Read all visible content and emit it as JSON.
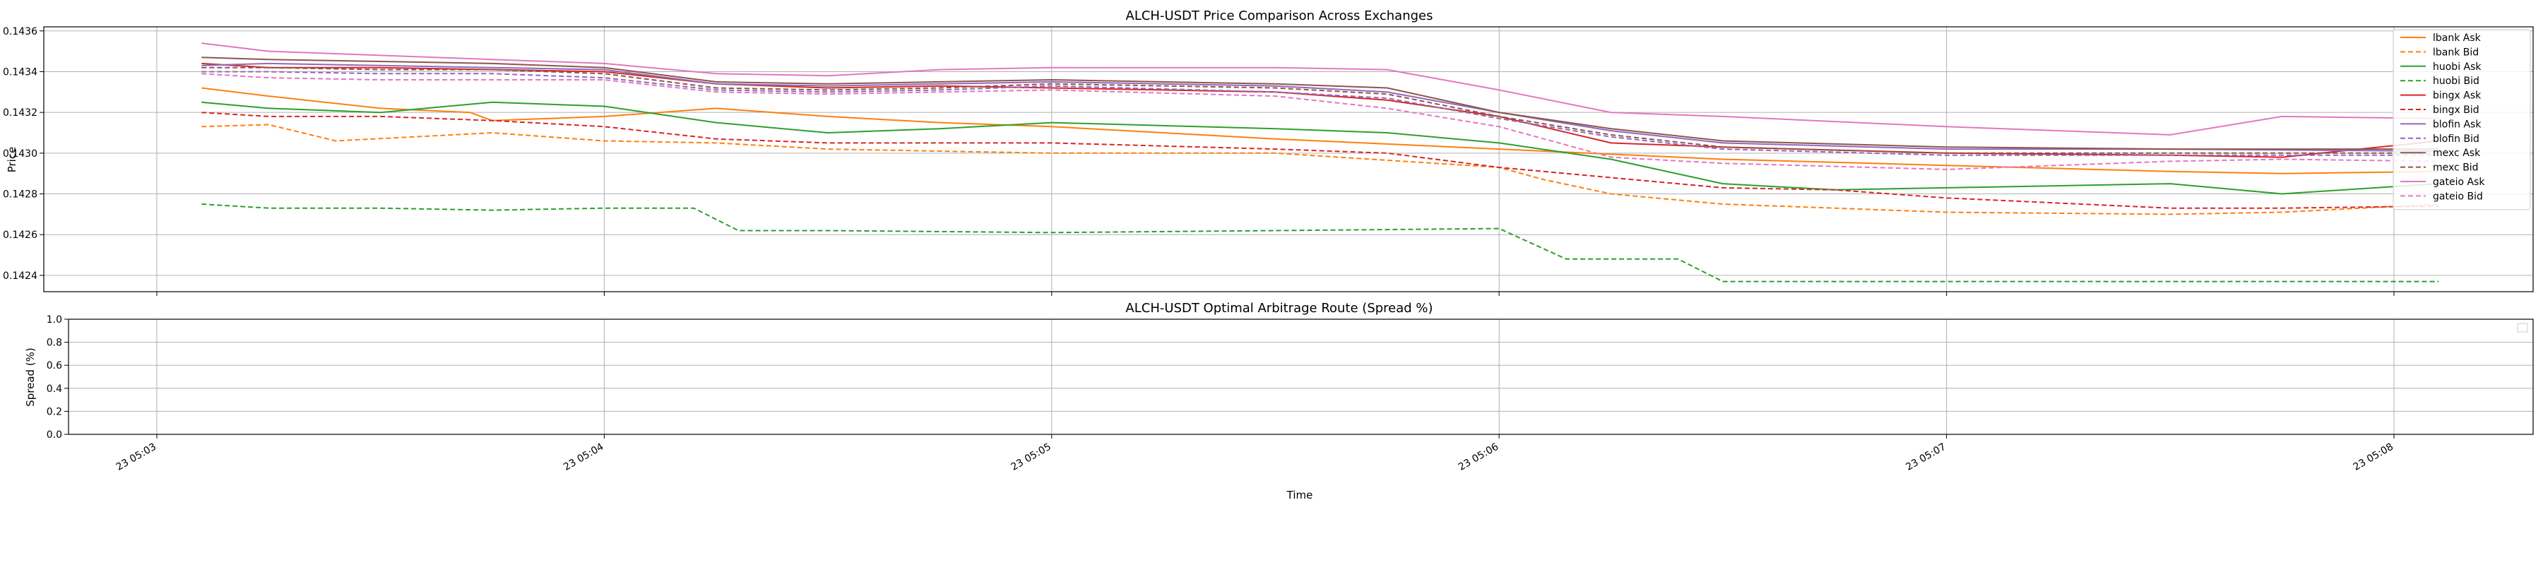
{
  "chart_data": [
    {
      "type": "line",
      "title": "ALCH-USDT Price Comparison Across Exchanges",
      "xlabel": "",
      "ylabel": "Price",
      "ylim": [
        0.14232,
        0.14362
      ],
      "y_ticks": [
        0.1424,
        0.1426,
        0.1428,
        0.143,
        0.1432,
        0.1434,
        0.1436
      ],
      "y_tick_labels": [
        "0.1424",
        "0.1426",
        "0.1428",
        "0.1430",
        "0.1432",
        "0.1434",
        "0.1436"
      ],
      "grid": true,
      "legend_position": "top-right",
      "series": [
        {
          "name": "lbank Ask",
          "color": "#ff7f0e",
          "dash": "solid",
          "points": [
            [
              0.2,
              0.14332
            ],
            [
              0.5,
              0.14328
            ],
            [
              1.0,
              0.14322
            ],
            [
              1.4,
              0.1432
            ],
            [
              1.5,
              0.14316
            ],
            [
              2.0,
              0.14318
            ],
            [
              2.5,
              0.14322
            ],
            [
              3.0,
              0.14318
            ],
            [
              3.5,
              0.14315
            ],
            [
              4.0,
              0.14313
            ],
            [
              5.0,
              0.14307
            ],
            [
              6.0,
              0.14302
            ],
            [
              7.0,
              0.14297
            ],
            [
              8.0,
              0.14294
            ],
            [
              9.0,
              0.14291
            ],
            [
              9.5,
              0.1429
            ],
            [
              10.2,
              0.14291
            ]
          ]
        },
        {
          "name": "lbank Bid",
          "color": "#ff7f0e",
          "dash": "dashed",
          "points": [
            [
              0.2,
              0.14313
            ],
            [
              0.5,
              0.14314
            ],
            [
              0.8,
              0.14306
            ],
            [
              1.5,
              0.1431
            ],
            [
              2.0,
              0.14306
            ],
            [
              2.5,
              0.14305
            ],
            [
              3.0,
              0.14302
            ],
            [
              3.5,
              0.14301
            ],
            [
              4.0,
              0.143
            ],
            [
              5.0,
              0.143
            ],
            [
              6.0,
              0.14293
            ],
            [
              6.2,
              0.14287
            ],
            [
              6.5,
              0.1428
            ],
            [
              7.0,
              0.14275
            ],
            [
              7.5,
              0.14273
            ],
            [
              8.0,
              0.14271
            ],
            [
              9.0,
              0.1427
            ],
            [
              9.5,
              0.14271
            ],
            [
              10.2,
              0.14275
            ]
          ]
        },
        {
          "name": "huobi Ask",
          "color": "#2ca02c",
          "dash": "solid",
          "points": [
            [
              0.2,
              0.14325
            ],
            [
              0.5,
              0.14322
            ],
            [
              1.0,
              0.1432
            ],
            [
              1.5,
              0.14325
            ],
            [
              2.0,
              0.14323
            ],
            [
              2.5,
              0.14315
            ],
            [
              3.0,
              0.1431
            ],
            [
              3.5,
              0.14312
            ],
            [
              4.0,
              0.14315
            ],
            [
              5.0,
              0.14312
            ],
            [
              5.5,
              0.1431
            ],
            [
              6.0,
              0.14305
            ],
            [
              6.5,
              0.14297
            ],
            [
              7.0,
              0.14285
            ],
            [
              7.5,
              0.14282
            ],
            [
              8.0,
              0.14283
            ],
            [
              9.0,
              0.14285
            ],
            [
              9.5,
              0.1428
            ],
            [
              10.2,
              0.14285
            ]
          ]
        },
        {
          "name": "huobi Bid",
          "color": "#2ca02c",
          "dash": "dashed",
          "points": [
            [
              0.2,
              0.14275
            ],
            [
              0.5,
              0.14273
            ],
            [
              1.0,
              0.14273
            ],
            [
              1.5,
              0.14272
            ],
            [
              2.0,
              0.14273
            ],
            [
              2.4,
              0.14273
            ],
            [
              2.6,
              0.14262
            ],
            [
              3.0,
              0.14262
            ],
            [
              4.0,
              0.14261
            ],
            [
              5.0,
              0.14262
            ],
            [
              6.0,
              0.14263
            ],
            [
              6.3,
              0.14248
            ],
            [
              6.8,
              0.14248
            ],
            [
              7.0,
              0.14237
            ],
            [
              8.0,
              0.14237
            ],
            [
              9.0,
              0.14237
            ],
            [
              10.2,
              0.14237
            ]
          ]
        },
        {
          "name": "bingx Ask",
          "color": "#d62728",
          "dash": "solid",
          "points": [
            [
              0.2,
              0.14344
            ],
            [
              0.5,
              0.14342
            ],
            [
              1.0,
              0.14342
            ],
            [
              1.5,
              0.14341
            ],
            [
              2.0,
              0.1434
            ],
            [
              2.5,
              0.14334
            ],
            [
              3.0,
              0.14332
            ],
            [
              3.5,
              0.14333
            ],
            [
              4.0,
              0.14332
            ],
            [
              5.0,
              0.1433
            ],
            [
              5.5,
              0.14326
            ],
            [
              6.0,
              0.14318
            ],
            [
              6.5,
              0.14305
            ],
            [
              7.0,
              0.14303
            ],
            [
              8.0,
              0.143
            ],
            [
              9.0,
              0.14299
            ],
            [
              9.5,
              0.14298
            ],
            [
              10.2,
              0.14306
            ]
          ]
        },
        {
          "name": "bingx Bid",
          "color": "#d62728",
          "dash": "dashed",
          "points": [
            [
              0.2,
              0.1432
            ],
            [
              0.5,
              0.14318
            ],
            [
              1.0,
              0.14318
            ],
            [
              1.5,
              0.14316
            ],
            [
              2.0,
              0.14313
            ],
            [
              2.5,
              0.14307
            ],
            [
              3.0,
              0.14305
            ],
            [
              3.5,
              0.14305
            ],
            [
              4.0,
              0.14305
            ],
            [
              5.0,
              0.14302
            ],
            [
              5.5,
              0.143
            ],
            [
              6.0,
              0.14293
            ],
            [
              6.5,
              0.14288
            ],
            [
              7.0,
              0.14283
            ],
            [
              7.5,
              0.14282
            ],
            [
              8.0,
              0.14278
            ],
            [
              9.0,
              0.14273
            ],
            [
              9.5,
              0.14273
            ],
            [
              10.2,
              0.14274
            ]
          ]
        },
        {
          "name": "blofin Ask",
          "color": "#9467bd",
          "dash": "solid",
          "points": [
            [
              0.2,
              0.14343
            ],
            [
              0.5,
              0.14344
            ],
            [
              1.0,
              0.14343
            ],
            [
              1.5,
              0.14342
            ],
            [
              2.0,
              0.14341
            ],
            [
              2.5,
              0.14334
            ],
            [
              3.0,
              0.14333
            ],
            [
              3.5,
              0.14334
            ],
            [
              4.0,
              0.14335
            ],
            [
              5.0,
              0.14333
            ],
            [
              5.5,
              0.1433
            ],
            [
              6.0,
              0.1432
            ],
            [
              6.5,
              0.14311
            ],
            [
              7.0,
              0.14305
            ],
            [
              8.0,
              0.14302
            ],
            [
              9.0,
              0.14302
            ],
            [
              10.2,
              0.14301
            ]
          ]
        },
        {
          "name": "blofin Bid",
          "color": "#9467bd",
          "dash": "dashed",
          "points": [
            [
              0.2,
              0.1434
            ],
            [
              0.5,
              0.1434
            ],
            [
              1.0,
              0.14339
            ],
            [
              1.5,
              0.14339
            ],
            [
              2.0,
              0.14337
            ],
            [
              2.5,
              0.14331
            ],
            [
              3.0,
              0.1433
            ],
            [
              3.5,
              0.14331
            ],
            [
              4.0,
              0.14333
            ],
            [
              5.0,
              0.1433
            ],
            [
              5.5,
              0.14327
            ],
            [
              6.0,
              0.14317
            ],
            [
              6.5,
              0.14308
            ],
            [
              7.0,
              0.14302
            ],
            [
              8.0,
              0.14299
            ],
            [
              9.0,
              0.14299
            ],
            [
              10.2,
              0.14299
            ]
          ]
        },
        {
          "name": "mexc Ask",
          "color": "#8c564b",
          "dash": "solid",
          "points": [
            [
              0.2,
              0.14347
            ],
            [
              0.5,
              0.14346
            ],
            [
              1.0,
              0.14345
            ],
            [
              1.5,
              0.14344
            ],
            [
              2.0,
              0.14342
            ],
            [
              2.5,
              0.14335
            ],
            [
              3.0,
              0.14334
            ],
            [
              3.5,
              0.14335
            ],
            [
              4.0,
              0.14336
            ],
            [
              5.0,
              0.14334
            ],
            [
              5.5,
              0.14332
            ],
            [
              6.0,
              0.1432
            ],
            [
              6.5,
              0.14312
            ],
            [
              7.0,
              0.14306
            ],
            [
              8.0,
              0.14303
            ],
            [
              9.0,
              0.14302
            ],
            [
              10.2,
              0.14302
            ]
          ]
        },
        {
          "name": "mexc Bid",
          "color": "#8c564b",
          "dash": "dashed",
          "points": [
            [
              0.2,
              0.14342
            ],
            [
              0.5,
              0.14342
            ],
            [
              1.0,
              0.14341
            ],
            [
              1.5,
              0.14341
            ],
            [
              2.0,
              0.14339
            ],
            [
              2.5,
              0.14332
            ],
            [
              3.0,
              0.14331
            ],
            [
              3.5,
              0.14332
            ],
            [
              4.0,
              0.14334
            ],
            [
              5.0,
              0.14332
            ],
            [
              5.5,
              0.14329
            ],
            [
              6.0,
              0.14318
            ],
            [
              6.5,
              0.14309
            ],
            [
              7.0,
              0.14303
            ],
            [
              8.0,
              0.143
            ],
            [
              9.0,
              0.143
            ],
            [
              10.2,
              0.143
            ]
          ]
        },
        {
          "name": "gateio Ask",
          "color": "#e377c2",
          "dash": "solid",
          "points": [
            [
              0.2,
              0.14354
            ],
            [
              0.5,
              0.1435
            ],
            [
              1.0,
              0.14348
            ],
            [
              1.5,
              0.14346
            ],
            [
              2.0,
              0.14344
            ],
            [
              2.5,
              0.14339
            ],
            [
              3.0,
              0.14338
            ],
            [
              3.5,
              0.14341
            ],
            [
              4.0,
              0.14342
            ],
            [
              5.0,
              0.14342
            ],
            [
              5.5,
              0.14341
            ],
            [
              6.0,
              0.14331
            ],
            [
              6.5,
              0.1432
            ],
            [
              7.0,
              0.14318
            ],
            [
              8.0,
              0.14313
            ],
            [
              9.0,
              0.14309
            ],
            [
              9.5,
              0.14318
            ],
            [
              10.2,
              0.14317
            ]
          ]
        },
        {
          "name": "gateio Bid",
          "color": "#e377c2",
          "dash": "dashed",
          "points": [
            [
              0.2,
              0.14339
            ],
            [
              0.5,
              0.14337
            ],
            [
              1.0,
              0.14336
            ],
            [
              1.5,
              0.14336
            ],
            [
              2.0,
              0.14336
            ],
            [
              2.5,
              0.1433
            ],
            [
              3.0,
              0.14329
            ],
            [
              3.5,
              0.1433
            ],
            [
              4.0,
              0.14331
            ],
            [
              5.0,
              0.14328
            ],
            [
              5.5,
              0.14322
            ],
            [
              6.0,
              0.14313
            ],
            [
              6.5,
              0.14298
            ],
            [
              7.0,
              0.14295
            ],
            [
              8.0,
              0.14292
            ],
            [
              9.0,
              0.14296
            ],
            [
              9.5,
              0.14297
            ],
            [
              10.2,
              0.14296
            ]
          ]
        }
      ]
    },
    {
      "type": "line",
      "title": "ALCH-USDT Optimal Arbitrage Route (Spread %)",
      "xlabel": "Time",
      "ylabel": "Spread (%)",
      "ylim": [
        0.0,
        1.0
      ],
      "y_ticks": [
        0.0,
        0.2,
        0.4,
        0.6,
        0.8,
        1.0
      ],
      "y_tick_labels": [
        "0.0",
        "0.2",
        "0.4",
        "0.6",
        "0.8",
        "1.0"
      ],
      "x_ticks": [
        0,
        2,
        4,
        6,
        8,
        10
      ],
      "x_tick_labels": [
        "23 05:03",
        "23 05:04",
        "23 05:05",
        "23 05:06",
        "23 05:07",
        "23 05:08"
      ],
      "x_range": [
        -0.2,
        10.5
      ],
      "grid": true,
      "series": []
    }
  ]
}
